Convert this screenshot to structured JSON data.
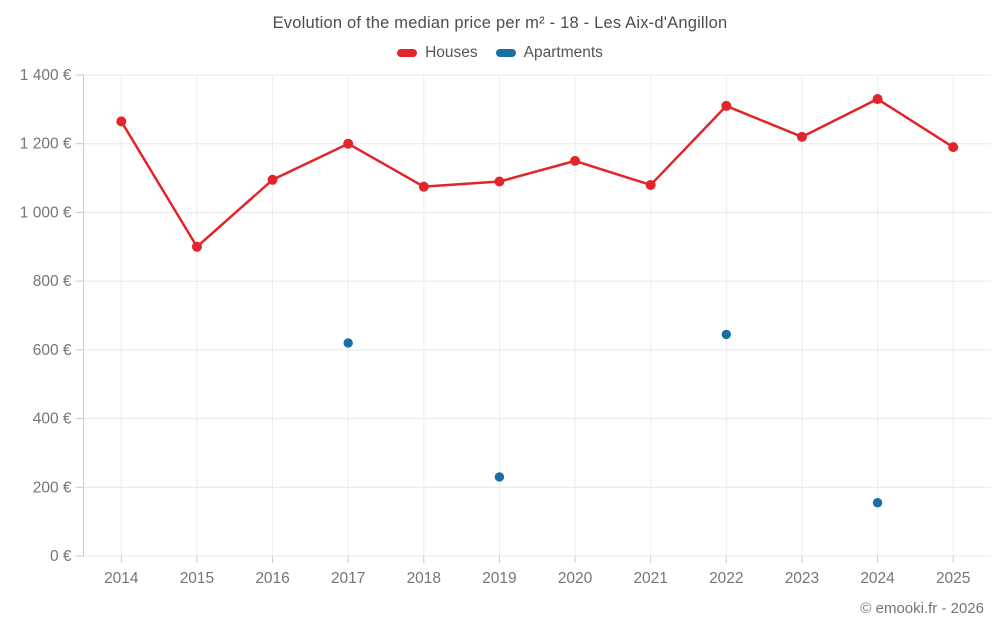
{
  "title": "Evolution of the median price per m² - 18 - Les Aix-d'Angillon",
  "footer": "© emooki.fr - 2026",
  "legend": [
    {
      "label": "Houses",
      "color": "#e1252b"
    },
    {
      "label": "Apartments",
      "color": "#176fa6"
    }
  ],
  "colors": {
    "houses": "#e1252b",
    "apartments": "#176fa6",
    "grid_horizontal": "#e8e8e8",
    "grid_vertical": "#ededed",
    "axis": "#c9c9c9",
    "tick_label": "#757575",
    "title_text": "#4d4d4d",
    "background": "#ffffff"
  },
  "chart_data": {
    "type": "line",
    "title": "Evolution of the median price per m² - 18 - Les Aix-d'Angillon",
    "x": [
      2014,
      2015,
      2016,
      2017,
      2018,
      2019,
      2020,
      2021,
      2022,
      2023,
      2024,
      2025
    ],
    "x_tick_labels": [
      "2014",
      "2015",
      "2016",
      "2017",
      "2018",
      "2019",
      "2020",
      "2021",
      "2022",
      "2023",
      "2024",
      "2025"
    ],
    "series": [
      {
        "name": "Houses",
        "type": "line",
        "color": "#e1252b",
        "values": [
          1265,
          900,
          1095,
          1200,
          1075,
          1090,
          1150,
          1080,
          1310,
          1220,
          1330,
          1190
        ]
      },
      {
        "name": "Apartments",
        "type": "scatter",
        "color": "#176fa6",
        "values": [
          null,
          null,
          null,
          620,
          null,
          230,
          null,
          null,
          645,
          null,
          155,
          null
        ]
      }
    ],
    "ylim": [
      0,
      1400
    ],
    "ytick_step": 200,
    "ytick_labels": [
      "0 €",
      "200 €",
      "400 €",
      "600 €",
      "800 €",
      "1 000 €",
      "1 200 €",
      "1 400 €"
    ],
    "xlabel": "",
    "ylabel": "",
    "grid": true,
    "legend_position": "top",
    "unit": "€ per m²"
  }
}
